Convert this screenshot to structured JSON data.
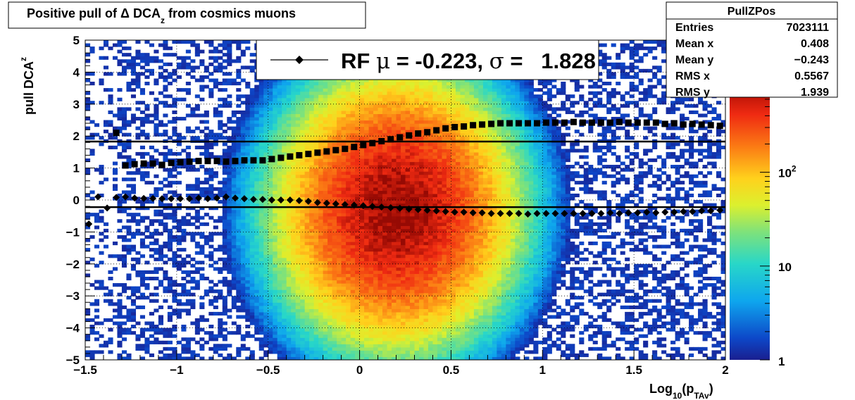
{
  "chart_data": {
    "type": "heatmap",
    "title_main": "Positive pull of Δ DCA",
    "title_sub": "z",
    "title_tail": " from cosmics muons",
    "xlabel_main": "Log",
    "xlabel_sub1": "10",
    "xlabel_mid": "(p",
    "xlabel_sub2": "TAv",
    "xlabel_end": ")",
    "ylabel_main": "pull DCA",
    "ylabel_sub": "z",
    "xlim": [
      -1.5,
      2
    ],
    "ylim": [
      -5,
      5
    ],
    "xticks": [
      -1.5,
      -1,
      -0.5,
      0,
      0.5,
      1,
      1.5,
      2
    ],
    "xtick_labels": [
      "−1.5",
      "−1",
      "−0.5",
      "0",
      "0.5",
      "1",
      "1.5",
      "2"
    ],
    "yticks": [
      -5,
      -4,
      -3,
      -2,
      -1,
      0,
      1,
      2,
      3,
      4,
      5
    ],
    "ytick_labels": [
      "−5",
      "−4",
      "−3",
      "−2",
      "−1",
      "0",
      "1",
      "2",
      "3",
      "4",
      "5"
    ],
    "grid": true,
    "z_log": true,
    "zlim": [
      1,
      700
    ],
    "z_labels": [
      {
        "value": 1,
        "label": "1"
      },
      {
        "value": 10,
        "label": "10"
      },
      {
        "value": 100,
        "label": "10",
        "sup": "2"
      }
    ],
    "hist_peak": {
      "x": 0.2,
      "y": -0.3
    },
    "stats": {
      "title": "PullZPos",
      "rows": [
        {
          "label": "Entries",
          "value": "7023111"
        },
        {
          "label": "Mean x",
          "value": "0.408"
        },
        {
          "label": "Mean y",
          "value": "−0.243"
        },
        {
          "label": "RMS x",
          "value": "0.5567"
        },
        {
          "label": "RMS y",
          "value": "1.939"
        }
      ]
    },
    "legend": {
      "prefix": "RF ",
      "mu_symbol": "μ",
      "middle": " = -0.223, ",
      "sigma_symbol": "σ",
      "suffix": " =   1.828"
    },
    "hlines": [
      -0.223,
      1.828
    ],
    "series": [
      {
        "marker": "square",
        "x": [
          -1.33,
          -1.28,
          -1.23,
          -1.18,
          -1.13,
          -1.08,
          -1.03,
          -0.98,
          -0.93,
          -0.88,
          -0.83,
          -0.78,
          -0.73,
          -0.68,
          -0.63,
          -0.58,
          -0.53,
          -0.48,
          -0.43,
          -0.38,
          -0.33,
          -0.28,
          -0.23,
          -0.18,
          -0.13,
          -0.08,
          -0.03,
          0.02,
          0.07,
          0.12,
          0.17,
          0.22,
          0.27,
          0.32,
          0.37,
          0.42,
          0.47,
          0.52,
          0.57,
          0.62,
          0.67,
          0.72,
          0.77,
          0.82,
          0.87,
          0.92,
          0.97,
          1.02,
          1.07,
          1.12,
          1.17,
          1.22,
          1.27,
          1.32,
          1.37,
          1.42,
          1.47,
          1.52,
          1.57,
          1.62,
          1.67,
          1.72,
          1.77,
          1.82,
          1.87,
          1.92,
          1.97
        ],
        "y": [
          2.1,
          1.08,
          1.12,
          1.14,
          1.14,
          1.1,
          1.16,
          1.18,
          1.2,
          1.22,
          1.22,
          1.22,
          1.2,
          1.22,
          1.24,
          1.24,
          1.24,
          1.28,
          1.32,
          1.36,
          1.4,
          1.44,
          1.48,
          1.52,
          1.56,
          1.6,
          1.66,
          1.72,
          1.78,
          1.84,
          1.9,
          1.96,
          2.02,
          2.08,
          2.12,
          2.18,
          2.24,
          2.28,
          2.3,
          2.34,
          2.36,
          2.38,
          2.4,
          2.4,
          2.4,
          2.4,
          2.4,
          2.42,
          2.42,
          2.42,
          2.44,
          2.42,
          2.42,
          2.42,
          2.42,
          2.44,
          2.42,
          2.42,
          2.42,
          2.42,
          2.38,
          2.4,
          2.36,
          2.38,
          2.36,
          2.34,
          2.32
        ]
      },
      {
        "marker": "diamond",
        "x": [
          -1.48,
          -1.43,
          -1.38,
          -1.33,
          -1.28,
          -1.23,
          -1.18,
          -1.13,
          -1.08,
          -1.03,
          -0.98,
          -0.93,
          -0.88,
          -0.83,
          -0.78,
          -0.73,
          -0.68,
          -0.63,
          -0.58,
          -0.53,
          -0.48,
          -0.43,
          -0.38,
          -0.33,
          -0.28,
          -0.23,
          -0.18,
          -0.13,
          -0.08,
          -0.03,
          0.02,
          0.07,
          0.12,
          0.17,
          0.22,
          0.27,
          0.32,
          0.37,
          0.42,
          0.47,
          0.52,
          0.57,
          0.62,
          0.67,
          0.72,
          0.77,
          0.82,
          0.87,
          0.92,
          0.97,
          1.02,
          1.07,
          1.12,
          1.17,
          1.22,
          1.27,
          1.32,
          1.37,
          1.42,
          1.47,
          1.52,
          1.57,
          1.62,
          1.67,
          1.72,
          1.77,
          1.82,
          1.87,
          1.92,
          1.97
        ],
        "y": [
          -0.75,
          0.1,
          -0.25,
          0.08,
          0.1,
          0.06,
          0.05,
          0.05,
          0.04,
          0.04,
          0.04,
          0.04,
          0.06,
          0.04,
          0.06,
          0.1,
          0.06,
          0.04,
          0.02,
          0.02,
          0,
          0,
          0,
          -0.02,
          -0.04,
          -0.08,
          -0.1,
          -0.12,
          -0.14,
          -0.16,
          -0.18,
          -0.2,
          -0.22,
          -0.24,
          -0.26,
          -0.28,
          -0.3,
          -0.32,
          -0.34,
          -0.36,
          -0.38,
          -0.38,
          -0.4,
          -0.4,
          -0.42,
          -0.42,
          -0.42,
          -0.42,
          -0.44,
          -0.42,
          -0.42,
          -0.42,
          -0.42,
          -0.42,
          -0.42,
          -0.42,
          -0.42,
          -0.4,
          -0.42,
          -0.4,
          -0.4,
          -0.38,
          -0.4,
          -0.38,
          -0.38,
          -0.36,
          -0.36,
          -0.34,
          -0.34,
          -0.32
        ]
      }
    ]
  }
}
